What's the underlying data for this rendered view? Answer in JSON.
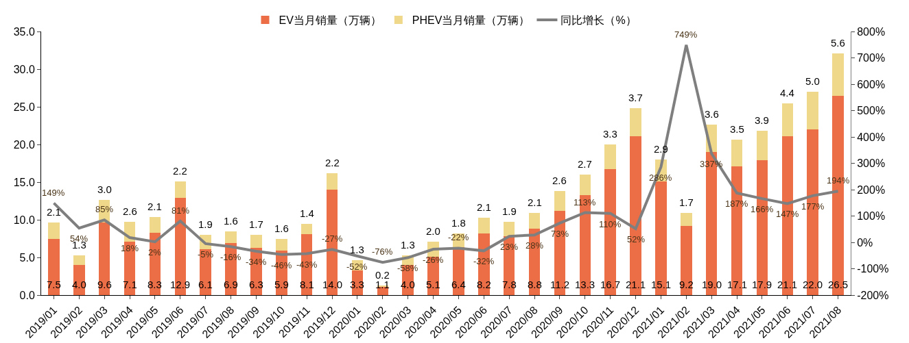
{
  "chart_data": {
    "type": "bar",
    "stacked": true,
    "legend": "top",
    "grid": false,
    "data_labels": true,
    "categories": [
      "2019/01",
      "2019/02",
      "2019/03",
      "2019/04",
      "2019/05",
      "2019/06",
      "2019/07",
      "2019/08",
      "2019/09",
      "2019/10",
      "2019/11",
      "2019/12",
      "2020/01",
      "2020/02",
      "2020/03",
      "2020/04",
      "2020/05",
      "2020/06",
      "2020/07",
      "2020/08",
      "2020/09",
      "2020/10",
      "2020/11",
      "2020/12",
      "2021/01",
      "2021/02",
      "2021/03",
      "2021/04",
      "2021/05",
      "2021/06",
      "2021/07",
      "2021/08"
    ],
    "ylim": [
      0,
      35
    ],
    "yticks": [
      {
        "value": 0,
        "label": "0.0"
      },
      {
        "value": 5,
        "label": "5.0"
      },
      {
        "value": 10,
        "label": "10.0"
      },
      {
        "value": 15,
        "label": "15.0"
      },
      {
        "value": 20,
        "label": "20.0"
      },
      {
        "value": 25,
        "label": "25.0"
      },
      {
        "value": 30,
        "label": "30.0"
      },
      {
        "value": 35,
        "label": "35.0"
      }
    ],
    "y2lim": [
      -200,
      800
    ],
    "y2ticks": [
      {
        "value": -200,
        "label": "-200%"
      },
      {
        "value": -100,
        "label": "-100%"
      },
      {
        "value": 0,
        "label": "0%"
      },
      {
        "value": 100,
        "label": "100%"
      },
      {
        "value": 200,
        "label": "200%"
      },
      {
        "value": 300,
        "label": "300%"
      },
      {
        "value": 400,
        "label": "400%"
      },
      {
        "value": 500,
        "label": "500%"
      },
      {
        "value": 600,
        "label": "600%"
      },
      {
        "value": 700,
        "label": "700%"
      },
      {
        "value": 800,
        "label": "800%"
      }
    ],
    "series": [
      {
        "name": "EV当月销量（万辆）",
        "type": "bar",
        "color": "#ec6e47",
        "values": [
          7.5,
          4.0,
          9.6,
          7.1,
          8.3,
          12.9,
          6.1,
          6.9,
          6.3,
          5.9,
          8.1,
          14.0,
          3.3,
          1.1,
          4.0,
          5.1,
          6.4,
          8.2,
          7.8,
          8.8,
          11.2,
          13.3,
          16.7,
          21.1,
          15.1,
          9.2,
          19.0,
          17.1,
          17.9,
          21.1,
          22.0,
          26.5
        ],
        "value_labels": [
          "7.5",
          "4.0",
          "9.6",
          "7.1",
          "8.3",
          "12.9",
          "6.1",
          "6.9",
          "6.3",
          "5.9",
          "8.1",
          "14.0",
          "3.3",
          "1.1",
          "4.0",
          "5.1",
          "6.4",
          "8.2",
          "7.8",
          "8.8",
          "11.2",
          "13.3",
          "16.7",
          "21.1",
          "15.1",
          "9.2",
          "19.0",
          "17.1",
          "17.9",
          "21.1",
          "22.0",
          "26.5"
        ]
      },
      {
        "name": "PHEV当月销量（万辆）",
        "type": "bar",
        "color": "#f0d88a",
        "values": [
          2.1,
          1.3,
          3.0,
          2.6,
          2.1,
          2.2,
          1.9,
          1.6,
          1.7,
          1.6,
          1.4,
          2.2,
          1.3,
          0.2,
          1.3,
          2.0,
          1.8,
          2.1,
          1.9,
          2.1,
          2.6,
          2.7,
          3.3,
          3.7,
          2.9,
          1.7,
          3.6,
          3.5,
          3.9,
          4.4,
          5.0,
          5.6
        ],
        "value_labels": [
          "2.1",
          "1.3",
          "3.0",
          "2.6",
          "2.1",
          "2.2",
          "1.9",
          "1.6",
          "1.7",
          "1.6",
          "1.4",
          "2.2",
          "1.3",
          "0.2",
          "1.3",
          "2.0",
          "1.8",
          "2.1",
          "1.9",
          "2.1",
          "2.6",
          "2.7",
          "3.3",
          "3.7",
          "2.9",
          "1.7",
          "3.6",
          "3.5",
          "3.9",
          "4.4",
          "5.0",
          "5.6"
        ]
      },
      {
        "name": "同比增长（%）",
        "type": "line",
        "axis": "y2",
        "color": "#7f7f7f",
        "marker": "none",
        "line_style": "solid",
        "values": [
          149,
          54,
          85,
          18,
          2,
          81,
          -5,
          -16,
          -34,
          -46,
          -43,
          -27,
          -52,
          -76,
          -58,
          -26,
          -22,
          -32,
          23,
          28,
          73,
          113,
          110,
          52,
          286,
          749,
          337,
          187,
          166,
          147,
          177,
          194
        ],
        "value_labels": [
          "149%",
          "54%",
          "85%",
          "18%",
          "2%",
          "81%",
          "-5%",
          "-16%",
          "-34%",
          "-46%",
          "-43%",
          "-27%",
          "-52%",
          "-76%",
          "-58%",
          "-26%",
          "-22%",
          "-32%",
          "23%",
          "28%",
          "73%",
          "113%",
          "110%",
          "52%",
          "286%",
          "749%",
          "337%",
          "187%",
          "166%",
          "147%",
          "177%",
          "194%"
        ]
      }
    ]
  }
}
